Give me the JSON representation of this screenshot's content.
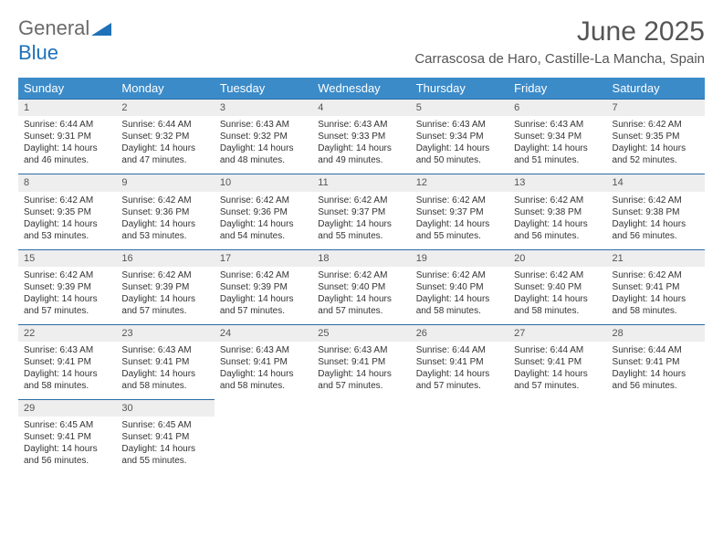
{
  "logo": {
    "text_gray": "General",
    "text_blue": "Blue"
  },
  "title": "June 2025",
  "location": "Carrascosa de Haro, Castille-La Mancha, Spain",
  "colors": {
    "header_bg": "#3b8bc9",
    "daynum_bg": "#eeeeee",
    "daynum_border": "#2a6ca8",
    "text": "#333333",
    "title_gray": "#555555"
  },
  "day_headers": [
    "Sunday",
    "Monday",
    "Tuesday",
    "Wednesday",
    "Thursday",
    "Friday",
    "Saturday"
  ],
  "weeks": [
    [
      {
        "n": "1",
        "sr": "Sunrise: 6:44 AM",
        "ss": "Sunset: 9:31 PM",
        "dl": "Daylight: 14 hours and 46 minutes."
      },
      {
        "n": "2",
        "sr": "Sunrise: 6:44 AM",
        "ss": "Sunset: 9:32 PM",
        "dl": "Daylight: 14 hours and 47 minutes."
      },
      {
        "n": "3",
        "sr": "Sunrise: 6:43 AM",
        "ss": "Sunset: 9:32 PM",
        "dl": "Daylight: 14 hours and 48 minutes."
      },
      {
        "n": "4",
        "sr": "Sunrise: 6:43 AM",
        "ss": "Sunset: 9:33 PM",
        "dl": "Daylight: 14 hours and 49 minutes."
      },
      {
        "n": "5",
        "sr": "Sunrise: 6:43 AM",
        "ss": "Sunset: 9:34 PM",
        "dl": "Daylight: 14 hours and 50 minutes."
      },
      {
        "n": "6",
        "sr": "Sunrise: 6:43 AM",
        "ss": "Sunset: 9:34 PM",
        "dl": "Daylight: 14 hours and 51 minutes."
      },
      {
        "n": "7",
        "sr": "Sunrise: 6:42 AM",
        "ss": "Sunset: 9:35 PM",
        "dl": "Daylight: 14 hours and 52 minutes."
      }
    ],
    [
      {
        "n": "8",
        "sr": "Sunrise: 6:42 AM",
        "ss": "Sunset: 9:35 PM",
        "dl": "Daylight: 14 hours and 53 minutes."
      },
      {
        "n": "9",
        "sr": "Sunrise: 6:42 AM",
        "ss": "Sunset: 9:36 PM",
        "dl": "Daylight: 14 hours and 53 minutes."
      },
      {
        "n": "10",
        "sr": "Sunrise: 6:42 AM",
        "ss": "Sunset: 9:36 PM",
        "dl": "Daylight: 14 hours and 54 minutes."
      },
      {
        "n": "11",
        "sr": "Sunrise: 6:42 AM",
        "ss": "Sunset: 9:37 PM",
        "dl": "Daylight: 14 hours and 55 minutes."
      },
      {
        "n": "12",
        "sr": "Sunrise: 6:42 AM",
        "ss": "Sunset: 9:37 PM",
        "dl": "Daylight: 14 hours and 55 minutes."
      },
      {
        "n": "13",
        "sr": "Sunrise: 6:42 AM",
        "ss": "Sunset: 9:38 PM",
        "dl": "Daylight: 14 hours and 56 minutes."
      },
      {
        "n": "14",
        "sr": "Sunrise: 6:42 AM",
        "ss": "Sunset: 9:38 PM",
        "dl": "Daylight: 14 hours and 56 minutes."
      }
    ],
    [
      {
        "n": "15",
        "sr": "Sunrise: 6:42 AM",
        "ss": "Sunset: 9:39 PM",
        "dl": "Daylight: 14 hours and 57 minutes."
      },
      {
        "n": "16",
        "sr": "Sunrise: 6:42 AM",
        "ss": "Sunset: 9:39 PM",
        "dl": "Daylight: 14 hours and 57 minutes."
      },
      {
        "n": "17",
        "sr": "Sunrise: 6:42 AM",
        "ss": "Sunset: 9:39 PM",
        "dl": "Daylight: 14 hours and 57 minutes."
      },
      {
        "n": "18",
        "sr": "Sunrise: 6:42 AM",
        "ss": "Sunset: 9:40 PM",
        "dl": "Daylight: 14 hours and 57 minutes."
      },
      {
        "n": "19",
        "sr": "Sunrise: 6:42 AM",
        "ss": "Sunset: 9:40 PM",
        "dl": "Daylight: 14 hours and 58 minutes."
      },
      {
        "n": "20",
        "sr": "Sunrise: 6:42 AM",
        "ss": "Sunset: 9:40 PM",
        "dl": "Daylight: 14 hours and 58 minutes."
      },
      {
        "n": "21",
        "sr": "Sunrise: 6:42 AM",
        "ss": "Sunset: 9:41 PM",
        "dl": "Daylight: 14 hours and 58 minutes."
      }
    ],
    [
      {
        "n": "22",
        "sr": "Sunrise: 6:43 AM",
        "ss": "Sunset: 9:41 PM",
        "dl": "Daylight: 14 hours and 58 minutes."
      },
      {
        "n": "23",
        "sr": "Sunrise: 6:43 AM",
        "ss": "Sunset: 9:41 PM",
        "dl": "Daylight: 14 hours and 58 minutes."
      },
      {
        "n": "24",
        "sr": "Sunrise: 6:43 AM",
        "ss": "Sunset: 9:41 PM",
        "dl": "Daylight: 14 hours and 58 minutes."
      },
      {
        "n": "25",
        "sr": "Sunrise: 6:43 AM",
        "ss": "Sunset: 9:41 PM",
        "dl": "Daylight: 14 hours and 57 minutes."
      },
      {
        "n": "26",
        "sr": "Sunrise: 6:44 AM",
        "ss": "Sunset: 9:41 PM",
        "dl": "Daylight: 14 hours and 57 minutes."
      },
      {
        "n": "27",
        "sr": "Sunrise: 6:44 AM",
        "ss": "Sunset: 9:41 PM",
        "dl": "Daylight: 14 hours and 57 minutes."
      },
      {
        "n": "28",
        "sr": "Sunrise: 6:44 AM",
        "ss": "Sunset: 9:41 PM",
        "dl": "Daylight: 14 hours and 56 minutes."
      }
    ],
    [
      {
        "n": "29",
        "sr": "Sunrise: 6:45 AM",
        "ss": "Sunset: 9:41 PM",
        "dl": "Daylight: 14 hours and 56 minutes."
      },
      {
        "n": "30",
        "sr": "Sunrise: 6:45 AM",
        "ss": "Sunset: 9:41 PM",
        "dl": "Daylight: 14 hours and 55 minutes."
      },
      {
        "empty": true
      },
      {
        "empty": true
      },
      {
        "empty": true
      },
      {
        "empty": true
      },
      {
        "empty": true
      }
    ]
  ]
}
